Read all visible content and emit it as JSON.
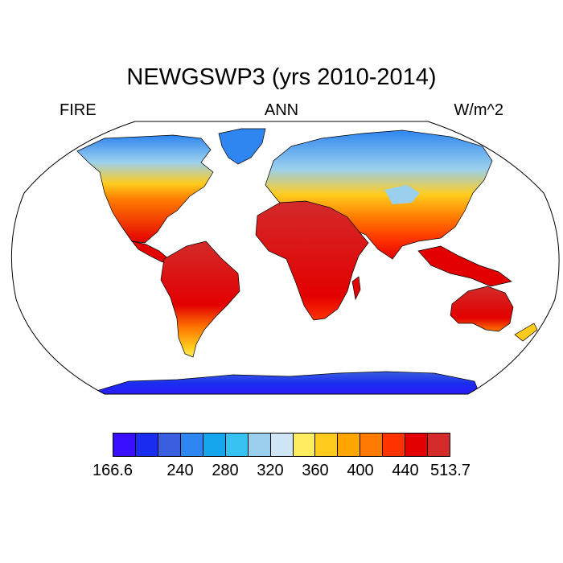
{
  "title": "NEWGSWP3 (yrs 2010-2014)",
  "left_label": "FIRE",
  "center_label": "ANN",
  "right_label": "W/m^2",
  "map_type": "global filled contour map (Robinson-style projection)",
  "colorbar": {
    "colors": [
      "#3a0fff",
      "#1a2cf0",
      "#3a5ee0",
      "#2f86f0",
      "#16a6ee",
      "#38c2f2",
      "#9ad0ee",
      "#cfe6f7",
      "#ffec60",
      "#ffcc1e",
      "#ffa600",
      "#ff7a00",
      "#ff3300",
      "#e30000",
      "#d32a2a"
    ],
    "tick_labels": [
      "166.6",
      "240",
      "280",
      "320",
      "360",
      "400",
      "440",
      "513.7"
    ]
  }
}
